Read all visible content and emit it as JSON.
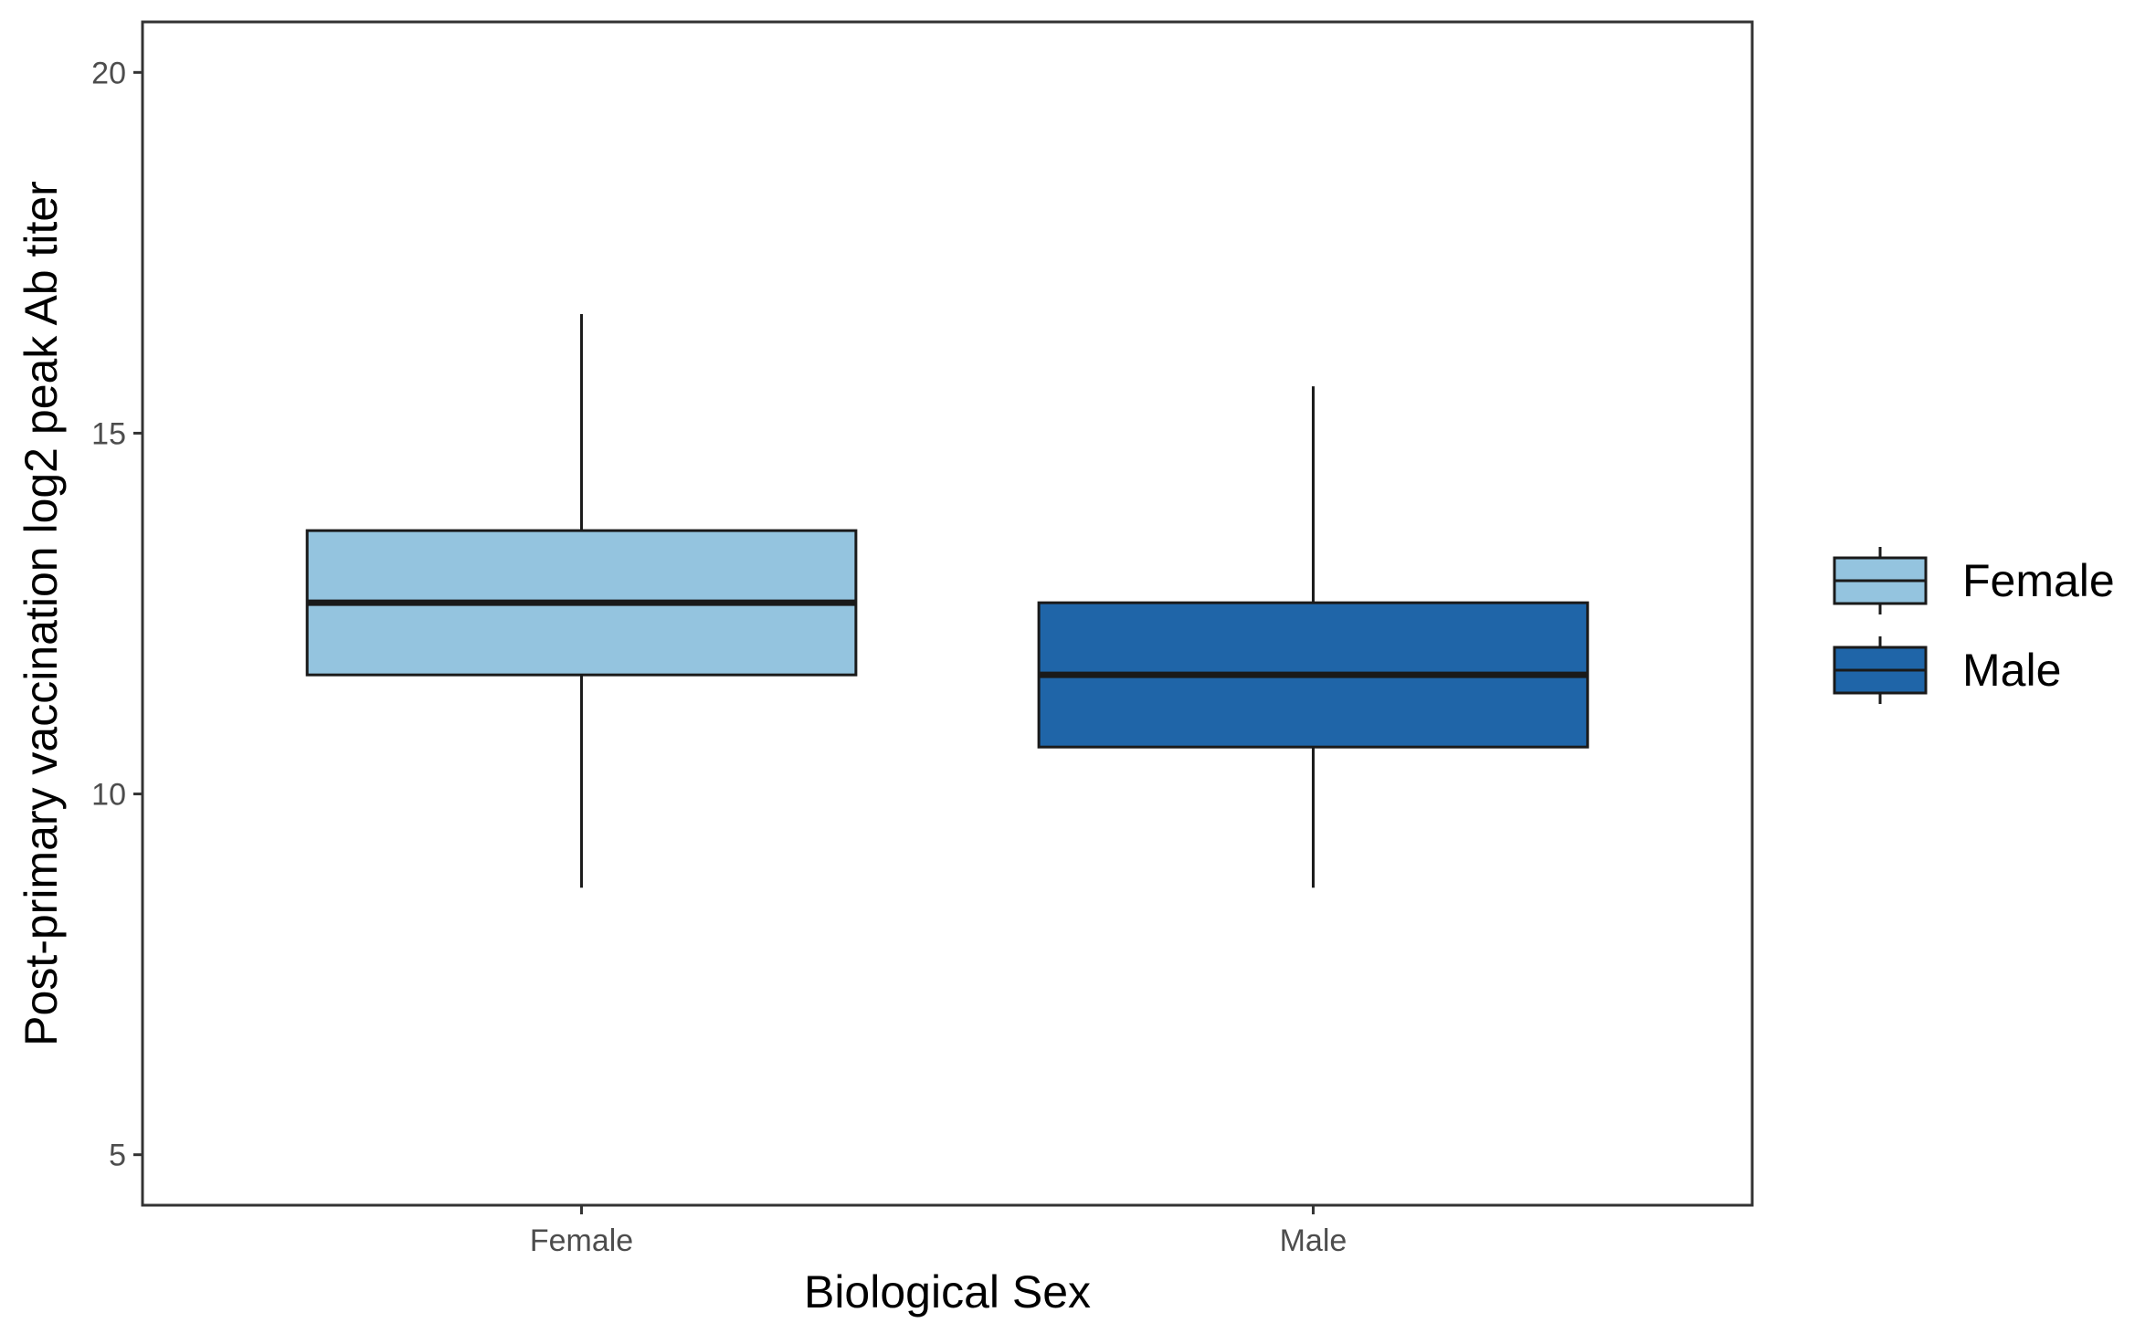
{
  "chart_data": {
    "type": "box",
    "xlabel": "Biological Sex",
    "ylabel": "Post-primary vaccination log2 peak Ab titer",
    "categories": [
      "Female",
      "Male"
    ],
    "ylim": [
      4.3,
      20.7
    ],
    "yticks": [
      5,
      10,
      15,
      20
    ],
    "grid": false,
    "legend_position": "right",
    "boxes": [
      {
        "name": "Female",
        "whisker_low": 8.7,
        "q1": 11.65,
        "median": 12.65,
        "q3": 13.65,
        "whisker_high": 16.65,
        "color": "#94c4df"
      },
      {
        "name": "Male",
        "whisker_low": 8.7,
        "q1": 10.65,
        "median": 11.65,
        "q3": 12.65,
        "whisker_high": 15.65,
        "color": "#1f65a8"
      }
    ]
  },
  "legend": {
    "items": [
      {
        "label": "Female",
        "color": "#94c4df"
      },
      {
        "label": "Male",
        "color": "#1f65a8"
      }
    ]
  }
}
